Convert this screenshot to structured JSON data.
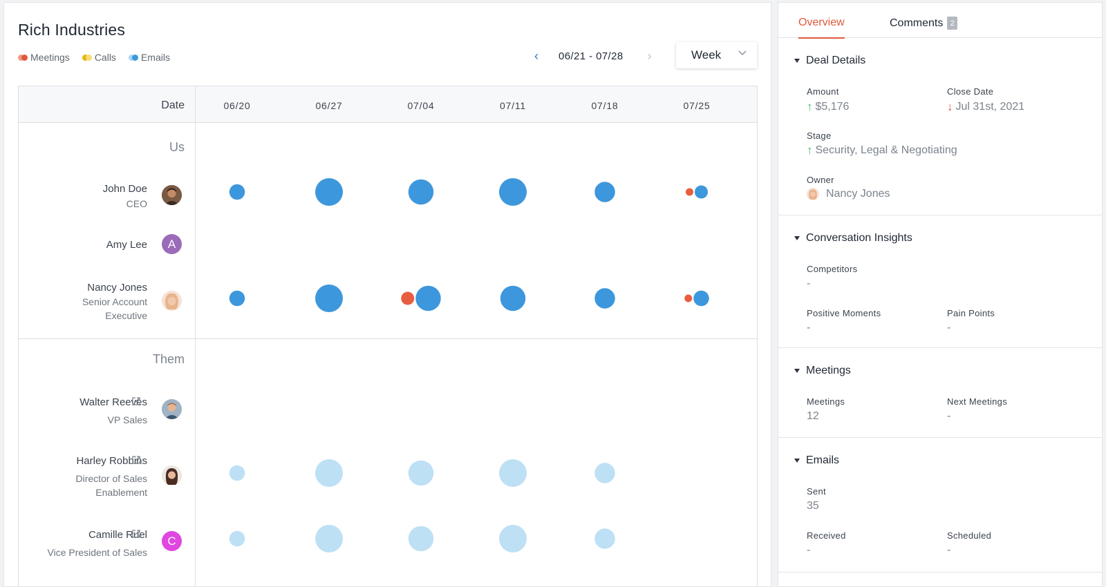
{
  "company": "Rich Industries",
  "legend": [
    {
      "label": "Meetings",
      "color_a": "#e0593d",
      "color_b": "#f39b86"
    },
    {
      "label": "Calls",
      "color_a": "#e6b800",
      "color_b": "#f6dd75"
    },
    {
      "label": "Emails",
      "color_a": "#3d97dc",
      "color_b": "#a9d6f5"
    }
  ],
  "date_range": {
    "label": "06/21 - 07/28",
    "prev_icon": "chevron-left-icon",
    "next_icon": "chevron-right-icon"
  },
  "period": {
    "value": "Week"
  },
  "grid": {
    "date_header": "Date",
    "columns": [
      "06/20",
      "06/27",
      "07/04",
      "07/11",
      "07/18",
      "07/25"
    ],
    "groups": {
      "us": "Us",
      "them": "Them"
    }
  },
  "people": [
    {
      "id": "john",
      "name": "John Doe",
      "title_lines": [
        "CEO"
      ],
      "avatar": "photo",
      "external": false
    },
    {
      "id": "amy",
      "name": "Amy Lee",
      "title_lines": [],
      "avatar": "A",
      "avatar_color": "#9b6bb9",
      "external": false
    },
    {
      "id": "nancy",
      "name": "Nancy Jones",
      "title_lines": [
        "Senior Account",
        "Executive"
      ],
      "avatar": "photo",
      "external": false
    },
    {
      "id": "walter",
      "name": "Walter Reeves",
      "title_lines": [
        "VP Sales"
      ],
      "avatar": "photo",
      "external": true
    },
    {
      "id": "harley",
      "name": "Harley Robbins",
      "title_lines": [
        "Director of Sales",
        "Enablement"
      ],
      "avatar": "photo",
      "external": true
    },
    {
      "id": "camille",
      "name": "Camille Ruel",
      "title_lines": [
        "Vice President of Sales"
      ],
      "avatar": "C",
      "avatar_color": "#e046e0",
      "external": true
    }
  ],
  "activity": {
    "colors": {
      "meeting": "#e85d3f",
      "email": "#3d97dc",
      "email_them": "#bde0f5"
    },
    "john": {
      "emails": [
        3,
        8,
        7,
        8,
        5,
        2
      ],
      "meetings": [
        0,
        0,
        0,
        0,
        0,
        1
      ]
    },
    "amy": {
      "emails": [
        0,
        0,
        0,
        0,
        0,
        0
      ],
      "meetings": [
        0,
        0,
        0,
        0,
        0,
        0
      ]
    },
    "nancy": {
      "emails": [
        3,
        8,
        7,
        7,
        5,
        3
      ],
      "meetings": [
        0,
        0,
        3,
        0,
        0,
        1
      ]
    },
    "walter": {
      "emails": [
        0,
        0,
        0,
        0,
        0,
        0
      ],
      "meetings": [
        0,
        0,
        0,
        0,
        0,
        0
      ]
    },
    "harley": {
      "emails": [
        3,
        8,
        7,
        8,
        5,
        0
      ],
      "meetings": [
        0,
        0,
        0,
        0,
        0,
        0
      ]
    },
    "camille": {
      "emails": [
        3,
        8,
        7,
        8,
        5,
        0
      ],
      "meetings": [
        0,
        0,
        0,
        0,
        0,
        0
      ]
    }
  },
  "tabs": {
    "overview": "Overview",
    "comments": "Comments",
    "comments_count": "2"
  },
  "deal": {
    "title": "Deal Details",
    "amount_label": "Amount",
    "amount_value": "$5,176",
    "close_label": "Close Date",
    "close_value": "Jul 31st, 2021",
    "stage_label": "Stage",
    "stage_value": "Security, Legal & Negotiating",
    "owner_label": "Owner",
    "owner_value": "Nancy Jones"
  },
  "insights": {
    "title": "Conversation Insights",
    "competitors_label": "Competitors",
    "competitors_value": "-",
    "positive_label": "Positive Moments",
    "positive_value": "-",
    "pain_label": "Pain Points",
    "pain_value": "-"
  },
  "meetings": {
    "title": "Meetings",
    "meetings_label": "Meetings",
    "meetings_value": "12",
    "next_label": "Next Meetings",
    "next_value": "-"
  },
  "emails": {
    "title": "Emails",
    "sent_label": "Sent",
    "sent_value": "35",
    "received_label": "Received",
    "received_value": "-",
    "scheduled_label": "Scheduled",
    "scheduled_value": "-"
  }
}
